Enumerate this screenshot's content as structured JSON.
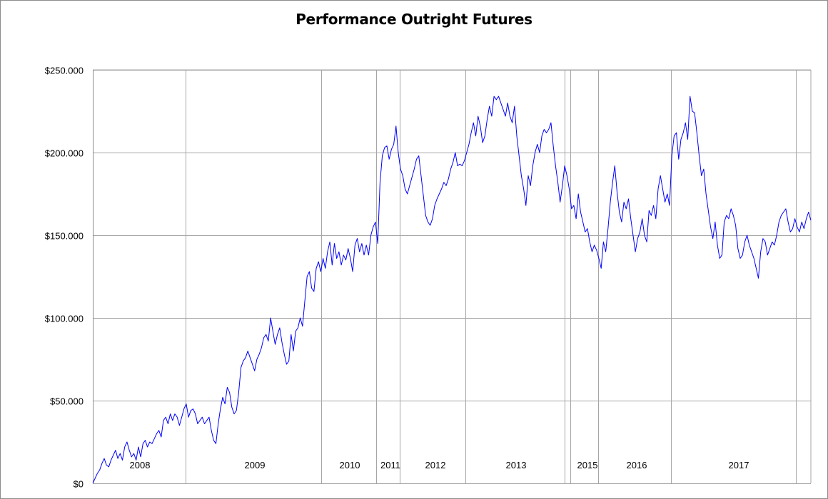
{
  "chart_data": {
    "type": "line",
    "title": "Performance Outright Futures",
    "xlabel": "",
    "ylabel": "",
    "ylim": [
      0,
      250000
    ],
    "y_ticks": [
      0,
      50000,
      100000,
      150000,
      200000,
      250000
    ],
    "y_tick_labels": [
      "$0",
      "$50.000",
      "$100.000",
      "$150.000",
      "$200.000",
      "$250.000"
    ],
    "x_labels": [
      "2008",
      "2009",
      "2010",
      "2011",
      "2012",
      "2013",
      "2015",
      "2016",
      "2017"
    ],
    "grid": true,
    "legend": "none",
    "series": [
      {
        "color": "#0000ff",
        "points": [
          [
            0,
            0
          ],
          [
            1,
            3000
          ],
          [
            2,
            6000
          ],
          [
            3,
            8000
          ],
          [
            4,
            12000
          ],
          [
            5,
            15000
          ],
          [
            6,
            11000
          ],
          [
            7,
            10000
          ],
          [
            8,
            14000
          ],
          [
            9,
            17000
          ],
          [
            10,
            20000
          ],
          [
            11,
            15000
          ],
          [
            12,
            18000
          ],
          [
            13,
            14000
          ],
          [
            14,
            22000
          ],
          [
            15,
            25000
          ],
          [
            16,
            20000
          ],
          [
            17,
            16000
          ],
          [
            18,
            18000
          ],
          [
            19,
            14000
          ],
          [
            20,
            22000
          ],
          [
            21,
            16000
          ],
          [
            22,
            24000
          ],
          [
            23,
            26000
          ],
          [
            24,
            22000
          ],
          [
            25,
            25000
          ],
          [
            26,
            24000
          ],
          [
            27,
            27000
          ],
          [
            28,
            30000
          ],
          [
            29,
            32000
          ],
          [
            30,
            28000
          ],
          [
            31,
            38000
          ],
          [
            32,
            40000
          ],
          [
            33,
            36000
          ],
          [
            34,
            42000
          ],
          [
            35,
            38000
          ],
          [
            36,
            42000
          ],
          [
            37,
            40000
          ],
          [
            38,
            35000
          ],
          [
            39,
            40000
          ],
          [
            40,
            45000
          ],
          [
            41,
            48000
          ],
          [
            42,
            40000
          ],
          [
            43,
            44000
          ],
          [
            44,
            45000
          ],
          [
            45,
            42000
          ],
          [
            46,
            36000
          ],
          [
            47,
            38000
          ],
          [
            48,
            40000
          ],
          [
            49,
            36000
          ],
          [
            50,
            38000
          ],
          [
            51,
            40000
          ],
          [
            52,
            32000
          ],
          [
            53,
            26000
          ],
          [
            54,
            24000
          ],
          [
            55,
            36000
          ],
          [
            56,
            45000
          ],
          [
            57,
            52000
          ],
          [
            58,
            48000
          ],
          [
            59,
            58000
          ],
          [
            60,
            55000
          ],
          [
            61,
            46000
          ],
          [
            62,
            42000
          ],
          [
            63,
            44000
          ],
          [
            64,
            55000
          ],
          [
            65,
            70000
          ],
          [
            66,
            74000
          ],
          [
            67,
            76000
          ],
          [
            68,
            80000
          ],
          [
            69,
            76000
          ],
          [
            70,
            72000
          ],
          [
            71,
            68000
          ],
          [
            72,
            75000
          ],
          [
            73,
            78000
          ],
          [
            74,
            82000
          ],
          [
            75,
            88000
          ],
          [
            76,
            90000
          ],
          [
            77,
            86000
          ],
          [
            78,
            100000
          ],
          [
            79,
            92000
          ],
          [
            80,
            84000
          ],
          [
            81,
            90000
          ],
          [
            82,
            94000
          ],
          [
            83,
            85000
          ],
          [
            84,
            78000
          ],
          [
            85,
            72000
          ],
          [
            86,
            74000
          ],
          [
            87,
            90000
          ],
          [
            88,
            80000
          ],
          [
            89,
            92000
          ],
          [
            90,
            94000
          ],
          [
            91,
            100000
          ],
          [
            92,
            95000
          ],
          [
            93,
            110000
          ],
          [
            94,
            125000
          ],
          [
            95,
            128000
          ],
          [
            96,
            118000
          ],
          [
            97,
            116000
          ],
          [
            98,
            130000
          ],
          [
            99,
            134000
          ],
          [
            100,
            128000
          ],
          [
            101,
            136000
          ],
          [
            102,
            130000
          ],
          [
            103,
            140000
          ],
          [
            104,
            146000
          ],
          [
            105,
            132000
          ],
          [
            106,
            145000
          ],
          [
            107,
            136000
          ],
          [
            108,
            140000
          ],
          [
            109,
            132000
          ],
          [
            110,
            138000
          ],
          [
            111,
            135000
          ],
          [
            112,
            142000
          ],
          [
            113,
            136000
          ],
          [
            114,
            128000
          ],
          [
            115,
            144000
          ],
          [
            116,
            148000
          ],
          [
            117,
            140000
          ],
          [
            118,
            145000
          ],
          [
            119,
            138000
          ],
          [
            120,
            144000
          ],
          [
            121,
            138000
          ],
          [
            122,
            150000
          ],
          [
            123,
            155000
          ],
          [
            124,
            158000
          ],
          [
            125,
            145000
          ],
          [
            126,
            182000
          ],
          [
            127,
            198000
          ],
          [
            128,
            203000
          ],
          [
            129,
            204000
          ],
          [
            130,
            196000
          ],
          [
            131,
            202000
          ],
          [
            132,
            205000
          ],
          [
            133,
            216000
          ],
          [
            134,
            200000
          ],
          [
            135,
            190000
          ],
          [
            136,
            186000
          ],
          [
            137,
            178000
          ],
          [
            138,
            175000
          ],
          [
            139,
            180000
          ],
          [
            140,
            185000
          ],
          [
            141,
            190000
          ],
          [
            142,
            196000
          ],
          [
            143,
            198000
          ],
          [
            144,
            186000
          ],
          [
            145,
            174000
          ],
          [
            146,
            162000
          ],
          [
            147,
            158000
          ],
          [
            148,
            156000
          ],
          [
            149,
            160000
          ],
          [
            150,
            168000
          ],
          [
            151,
            172000
          ],
          [
            152,
            175000
          ],
          [
            153,
            178000
          ],
          [
            154,
            182000
          ],
          [
            155,
            180000
          ],
          [
            156,
            184000
          ],
          [
            157,
            190000
          ],
          [
            158,
            194000
          ],
          [
            159,
            200000
          ],
          [
            160,
            192000
          ],
          [
            161,
            193000
          ],
          [
            162,
            192000
          ],
          [
            163,
            195000
          ],
          [
            164,
            200000
          ],
          [
            165,
            205000
          ],
          [
            166,
            212000
          ],
          [
            167,
            218000
          ],
          [
            168,
            210000
          ],
          [
            169,
            222000
          ],
          [
            170,
            216000
          ],
          [
            171,
            206000
          ],
          [
            172,
            210000
          ],
          [
            173,
            220000
          ],
          [
            174,
            228000
          ],
          [
            175,
            222000
          ],
          [
            176,
            234000
          ],
          [
            177,
            232000
          ],
          [
            178,
            234000
          ],
          [
            179,
            230000
          ],
          [
            180,
            226000
          ],
          [
            181,
            222000
          ],
          [
            182,
            230000
          ],
          [
            183,
            222000
          ],
          [
            184,
            218000
          ],
          [
            185,
            228000
          ],
          [
            186,
            210000
          ],
          [
            187,
            198000
          ],
          [
            188,
            186000
          ],
          [
            189,
            178000
          ],
          [
            190,
            168000
          ],
          [
            191,
            186000
          ],
          [
            192,
            180000
          ],
          [
            193,
            192000
          ],
          [
            194,
            200000
          ],
          [
            195,
            205000
          ],
          [
            196,
            200000
          ],
          [
            197,
            210000
          ],
          [
            198,
            214000
          ],
          [
            199,
            212000
          ],
          [
            200,
            214000
          ],
          [
            201,
            218000
          ],
          [
            202,
            204000
          ],
          [
            203,
            192000
          ],
          [
            204,
            182000
          ],
          [
            205,
            170000
          ],
          [
            206,
            180000
          ],
          [
            207,
            192000
          ],
          [
            208,
            186000
          ],
          [
            209,
            178000
          ],
          [
            210,
            166000
          ],
          [
            211,
            168000
          ],
          [
            212,
            160000
          ],
          [
            213,
            175000
          ],
          [
            214,
            164000
          ],
          [
            215,
            158000
          ],
          [
            216,
            152000
          ],
          [
            217,
            154000
          ],
          [
            218,
            146000
          ],
          [
            219,
            140000
          ],
          [
            220,
            144000
          ],
          [
            221,
            141000
          ],
          [
            222,
            136000
          ],
          [
            223,
            130000
          ],
          [
            224,
            146000
          ],
          [
            225,
            140000
          ],
          [
            226,
            154000
          ],
          [
            227,
            170000
          ],
          [
            228,
            182000
          ],
          [
            229,
            192000
          ],
          [
            230,
            176000
          ],
          [
            231,
            164000
          ],
          [
            232,
            158000
          ],
          [
            233,
            170000
          ],
          [
            234,
            166000
          ],
          [
            235,
            172000
          ],
          [
            236,
            160000
          ],
          [
            237,
            150000
          ],
          [
            238,
            140000
          ],
          [
            239,
            148000
          ],
          [
            240,
            152000
          ],
          [
            241,
            160000
          ],
          [
            242,
            150000
          ],
          [
            243,
            146000
          ],
          [
            244,
            165000
          ],
          [
            245,
            162000
          ],
          [
            246,
            168000
          ],
          [
            247,
            160000
          ],
          [
            248,
            178000
          ],
          [
            249,
            186000
          ],
          [
            250,
            178000
          ],
          [
            251,
            170000
          ],
          [
            252,
            175000
          ],
          [
            253,
            168000
          ],
          [
            254,
            198000
          ],
          [
            255,
            210000
          ],
          [
            256,
            212000
          ],
          [
            257,
            196000
          ],
          [
            258,
            208000
          ],
          [
            259,
            212000
          ],
          [
            260,
            218000
          ],
          [
            261,
            208000
          ],
          [
            262,
            234000
          ],
          [
            263,
            225000
          ],
          [
            264,
            224000
          ],
          [
            265,
            212000
          ],
          [
            266,
            198000
          ],
          [
            267,
            186000
          ],
          [
            268,
            190000
          ],
          [
            269,
            175000
          ],
          [
            270,
            165000
          ],
          [
            271,
            155000
          ],
          [
            272,
            148000
          ],
          [
            273,
            158000
          ],
          [
            274,
            144000
          ],
          [
            275,
            136000
          ],
          [
            276,
            138000
          ],
          [
            277,
            158000
          ],
          [
            278,
            162000
          ],
          [
            279,
            160000
          ],
          [
            280,
            166000
          ],
          [
            281,
            162000
          ],
          [
            282,
            156000
          ],
          [
            283,
            142000
          ],
          [
            284,
            136000
          ],
          [
            285,
            138000
          ],
          [
            286,
            146000
          ],
          [
            287,
            150000
          ],
          [
            288,
            144000
          ],
          [
            289,
            140000
          ],
          [
            290,
            136000
          ],
          [
            291,
            130000
          ],
          [
            292,
            124000
          ],
          [
            293,
            140000
          ],
          [
            294,
            148000
          ],
          [
            295,
            146000
          ],
          [
            296,
            138000
          ],
          [
            297,
            142000
          ],
          [
            298,
            146000
          ],
          [
            299,
            144000
          ],
          [
            300,
            150000
          ],
          [
            301,
            158000
          ],
          [
            302,
            162000
          ],
          [
            303,
            164000
          ],
          [
            304,
            166000
          ],
          [
            305,
            158000
          ],
          [
            306,
            152000
          ],
          [
            307,
            154000
          ],
          [
            308,
            160000
          ],
          [
            309,
            155000
          ],
          [
            310,
            152000
          ],
          [
            311,
            158000
          ],
          [
            312,
            154000
          ],
          [
            313,
            160000
          ],
          [
            314,
            164000
          ],
          [
            315,
            159000
          ]
        ]
      }
    ]
  }
}
